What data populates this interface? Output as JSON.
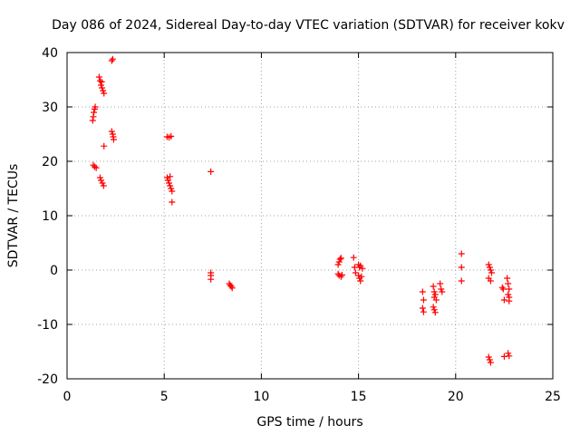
{
  "chart_data": {
    "type": "scatter",
    "title": "Day 086 of 2024, Sidereal Day-to-day VTEC variation (SDTVAR) for receiver kokv",
    "xlabel": "GPS time / hours",
    "ylabel": "SDTVAR / TECUs",
    "xlim": [
      0,
      25
    ],
    "ylim": [
      -20,
      40
    ],
    "xticks": [
      0,
      5,
      10,
      15,
      20,
      25
    ],
    "yticks": [
      -20,
      -10,
      0,
      10,
      20,
      30,
      40
    ],
    "grid": true,
    "marker": "+",
    "series": [
      {
        "name": "SDTVAR",
        "color": "#ff0000",
        "points": [
          [
            1.32,
            27.5
          ],
          [
            1.35,
            28.2
          ],
          [
            1.38,
            29.0
          ],
          [
            1.42,
            29.6
          ],
          [
            1.45,
            30.0
          ],
          [
            1.35,
            19.3
          ],
          [
            1.42,
            19.0
          ],
          [
            1.5,
            18.8
          ],
          [
            1.65,
            35.5
          ],
          [
            1.7,
            34.8
          ],
          [
            1.75,
            34.0
          ],
          [
            1.8,
            33.5
          ],
          [
            1.85,
            33.0
          ],
          [
            1.9,
            32.5
          ],
          [
            1.78,
            34.6
          ],
          [
            1.7,
            17.0
          ],
          [
            1.75,
            16.5
          ],
          [
            1.82,
            16.0
          ],
          [
            1.88,
            15.5
          ],
          [
            1.9,
            22.8
          ],
          [
            2.3,
            38.5
          ],
          [
            2.35,
            38.8
          ],
          [
            2.3,
            25.5
          ],
          [
            2.35,
            25.0
          ],
          [
            2.38,
            24.5
          ],
          [
            2.4,
            24.0
          ],
          [
            5.15,
            24.5
          ],
          [
            5.25,
            24.4
          ],
          [
            5.35,
            24.6
          ],
          [
            5.15,
            17.0
          ],
          [
            5.2,
            16.5
          ],
          [
            5.25,
            16.0
          ],
          [
            5.3,
            15.5
          ],
          [
            5.35,
            15.0
          ],
          [
            5.4,
            14.5
          ],
          [
            5.3,
            17.2
          ],
          [
            5.4,
            12.5
          ],
          [
            7.4,
            18.1
          ],
          [
            7.4,
            -0.5
          ],
          [
            7.4,
            -1.0
          ],
          [
            7.4,
            -1.7
          ],
          [
            8.35,
            -2.5
          ],
          [
            8.4,
            -2.8
          ],
          [
            8.45,
            -3.0
          ],
          [
            8.5,
            -3.3
          ],
          [
            13.95,
            1.0
          ],
          [
            14.0,
            1.5
          ],
          [
            14.05,
            2.0
          ],
          [
            14.1,
            2.2
          ],
          [
            13.95,
            -0.7
          ],
          [
            14.0,
            -1.0
          ],
          [
            14.1,
            -1.2
          ],
          [
            14.15,
            -0.9
          ],
          [
            14.75,
            2.3
          ],
          [
            14.8,
            0.5
          ],
          [
            14.85,
            -0.5
          ],
          [
            15.0,
            1.0
          ],
          [
            15.05,
            0.5
          ],
          [
            15.1,
            0.8
          ],
          [
            15.2,
            0.3
          ],
          [
            15.0,
            -1.0
          ],
          [
            15.05,
            -1.5
          ],
          [
            15.1,
            -2.0
          ],
          [
            15.15,
            -1.2
          ],
          [
            18.3,
            -4.0
          ],
          [
            18.35,
            -5.5
          ],
          [
            18.3,
            -7.0
          ],
          [
            18.35,
            -7.7
          ],
          [
            18.85,
            -3.0
          ],
          [
            18.9,
            -4.0
          ],
          [
            18.9,
            -5.0
          ],
          [
            18.95,
            -4.5
          ],
          [
            18.85,
            -6.8
          ],
          [
            18.9,
            -7.3
          ],
          [
            18.95,
            -7.8
          ],
          [
            19.0,
            -5.5
          ],
          [
            19.2,
            -2.5
          ],
          [
            19.25,
            -3.5
          ],
          [
            19.3,
            -4.0
          ],
          [
            20.3,
            3.0
          ],
          [
            20.3,
            0.5
          ],
          [
            20.3,
            -2.0
          ],
          [
            21.7,
            1.0
          ],
          [
            21.75,
            0.5
          ],
          [
            21.8,
            0.0
          ],
          [
            21.85,
            -0.5
          ],
          [
            21.7,
            -1.5
          ],
          [
            21.8,
            -2.0
          ],
          [
            21.7,
            -16.0
          ],
          [
            21.75,
            -16.5
          ],
          [
            21.8,
            -17.0
          ],
          [
            22.4,
            -3.2
          ],
          [
            22.45,
            -3.5
          ],
          [
            22.5,
            -5.5
          ],
          [
            22.5,
            -15.9
          ],
          [
            22.65,
            -1.5
          ],
          [
            22.7,
            -2.5
          ],
          [
            22.75,
            -3.5
          ],
          [
            22.7,
            -4.5
          ],
          [
            22.75,
            -5.0
          ],
          [
            22.75,
            -5.7
          ],
          [
            22.7,
            -15.3
          ],
          [
            22.75,
            -15.8
          ]
        ]
      }
    ]
  }
}
